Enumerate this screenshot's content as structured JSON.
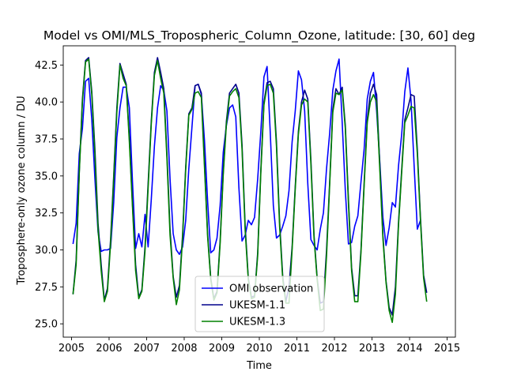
{
  "chart_data": {
    "type": "line",
    "title": "Model vs OMI/MLS_Tropospheric_Column_Ozone, latitude: [30, 60] deg",
    "xlabel": "Time",
    "ylabel": "Troposphere-only ozone column / DU",
    "xlim": [
      2004.78,
      2015.22
    ],
    "ylim": [
      24.1,
      43.8
    ],
    "xticks": [
      2005,
      2006,
      2007,
      2008,
      2009,
      2010,
      2011,
      2012,
      2013,
      2014,
      2015
    ],
    "xtick_labels": [
      "2005",
      "2006",
      "2007",
      "2008",
      "2009",
      "2010",
      "2011",
      "2012",
      "2013",
      "2014",
      "2015"
    ],
    "yticks": [
      25.0,
      27.5,
      30.0,
      32.5,
      35.0,
      37.5,
      40.0,
      42.5
    ],
    "ytick_labels": [
      "25.0",
      "27.5",
      "30.0",
      "32.5",
      "35.0",
      "37.5",
      "40.0",
      "42.5"
    ],
    "grid": false,
    "legend_position": "lower-center",
    "x_start": 2005.04,
    "x_step": 0.08333,
    "series": [
      {
        "name": "OMI observation",
        "color": "#0000ff",
        "values": [
          30.4,
          31.8,
          36.5,
          38.2,
          41.4,
          41.6,
          38.8,
          34.8,
          31.2,
          29.9,
          30.0,
          30.0,
          30.1,
          33.2,
          37.6,
          39.6,
          41.0,
          41.0,
          39.6,
          34.6,
          30.1,
          31.1,
          30.2,
          32.4,
          30.2,
          33.4,
          37.0,
          39.6,
          41.1,
          40.8,
          39.4,
          34.8,
          31.1,
          30.0,
          29.7,
          30.2,
          32.0,
          35.5,
          38.3,
          41.1,
          41.2,
          40.5,
          37.4,
          33.3,
          29.8,
          30.0,
          30.8,
          33.0,
          36.6,
          38.4,
          39.6,
          39.8,
          39.0,
          34.2,
          30.6,
          31.0,
          32.0,
          31.7,
          32.2,
          34.8,
          38.0,
          41.7,
          42.4,
          38.0,
          33.0,
          30.8,
          31.0,
          31.6,
          32.3,
          34.0,
          37.3,
          39.4,
          42.1,
          41.5,
          39.4,
          34.5,
          30.7,
          30.3,
          30.0,
          31.4,
          32.5,
          35.5,
          37.9,
          40.8,
          42.1,
          42.9,
          38.6,
          34.0,
          30.4,
          30.5,
          31.6,
          32.3,
          34.6,
          36.8,
          40.2,
          41.4,
          42.0,
          39.4,
          36.0,
          32.2,
          30.3,
          31.5,
          33.2,
          32.9,
          35.7,
          37.8,
          40.7,
          42.3,
          40.1,
          35.6,
          31.4,
          32.0
        ]
      },
      {
        "name": "UKESM-1.1",
        "color": "#00008b",
        "values": [
          27.0,
          29.3,
          35.3,
          40.2,
          42.8,
          43.0,
          40.7,
          36.8,
          31.8,
          29.0,
          26.6,
          27.4,
          30.7,
          35.0,
          39.6,
          42.6,
          41.9,
          41.2,
          37.6,
          33.1,
          29.0,
          26.8,
          27.3,
          30.2,
          34.5,
          38.7,
          42.0,
          43.0,
          42.0,
          40.9,
          36.5,
          31.4,
          28.2,
          26.8,
          27.6,
          31.0,
          35.6,
          39.2,
          39.6,
          41.1,
          41.2,
          40.6,
          35.9,
          31.1,
          28.1,
          26.7,
          27.2,
          30.6,
          35.3,
          38.7,
          40.6,
          40.9,
          41.2,
          40.6,
          37.1,
          31.6,
          28.1,
          26.8,
          26.9,
          29.8,
          35.4,
          40.0,
          41.3,
          41.4,
          40.9,
          37.3,
          31.9,
          28.2,
          26.5,
          27.5,
          30.2,
          34.3,
          38.0,
          40.0,
          40.8,
          40.2,
          36.1,
          31.0,
          28.1,
          26.4,
          26.5,
          30.0,
          34.6,
          39.5,
          40.9,
          40.5,
          41.0,
          38.4,
          33.4,
          28.8,
          26.9,
          26.9,
          30.0,
          34.5,
          38.8,
          40.6,
          41.2,
          40.5,
          35.8,
          31.0,
          27.9,
          26.1,
          25.6,
          27.5,
          31.9,
          35.4,
          38.8,
          39.6,
          40.5,
          40.4,
          36.8,
          32.2,
          28.3,
          27.1
        ]
      },
      {
        "name": "UKESM-1.3",
        "color": "#008000",
        "values": [
          27.0,
          29.0,
          35.2,
          40.0,
          42.7,
          42.9,
          40.5,
          36.4,
          31.4,
          28.6,
          26.5,
          27.2,
          30.4,
          34.8,
          39.3,
          42.5,
          41.6,
          41.1,
          37.3,
          32.9,
          28.6,
          26.7,
          27.2,
          29.9,
          34.2,
          38.5,
          41.8,
          42.8,
          41.6,
          40.6,
          36.2,
          31.0,
          28.1,
          26.3,
          27.3,
          30.8,
          35.4,
          39.1,
          39.5,
          40.6,
          40.7,
          40.3,
          35.6,
          30.9,
          28.0,
          26.6,
          27.1,
          30.4,
          35.1,
          38.5,
          40.4,
          40.7,
          40.9,
          40.3,
          36.8,
          31.3,
          28.0,
          26.7,
          26.8,
          29.6,
          35.2,
          39.8,
          41.1,
          41.2,
          40.6,
          37.0,
          31.6,
          28.0,
          26.4,
          26.4,
          30.0,
          34.1,
          37.8,
          39.8,
          40.2,
          40.0,
          35.8,
          30.8,
          28.0,
          25.9,
          26.0,
          29.6,
          34.4,
          39.3,
          40.6,
          40.5,
          40.8,
          38.2,
          33.1,
          28.6,
          26.5,
          26.5,
          29.8,
          34.3,
          38.6,
          40.0,
          40.5,
          40.0,
          35.5,
          30.8,
          27.8,
          25.9,
          25.1,
          27.0,
          31.7,
          35.2,
          38.6,
          39.1,
          39.7,
          39.6,
          36.5,
          32.0,
          28.1,
          26.5
        ]
      }
    ]
  }
}
